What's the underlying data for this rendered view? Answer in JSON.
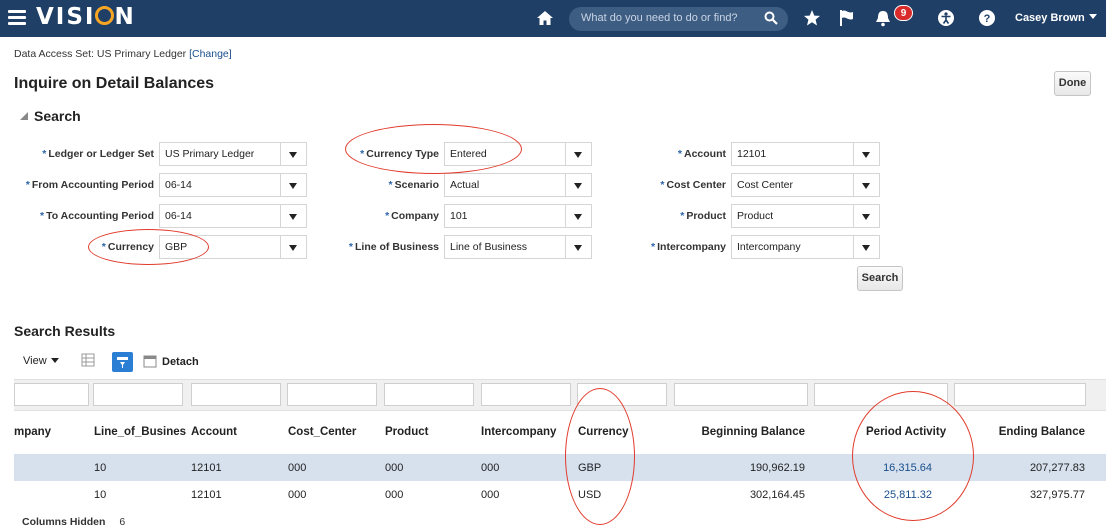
{
  "app": {
    "logo_text": "VISI",
    "logo_tail": "N",
    "search_placeholder": "What do you need to do or find?",
    "notification_count": "9",
    "user_name": "Casey Brown",
    "icons": [
      "menu-icon",
      "home-icon",
      "search-icon",
      "star-icon",
      "flag-icon",
      "bell-icon",
      "accessibility-icon",
      "help-icon"
    ]
  },
  "context": {
    "data_access_label": "Data Access Set: US Primary Ledger",
    "change_link": "[Change]"
  },
  "page": {
    "title": "Inquire on Detail Balances",
    "done_label": "Done",
    "search_section": "Search",
    "search_button": "Search"
  },
  "form": {
    "ledger_label": "Ledger or Ledger Set",
    "ledger_value": "US Primary Ledger",
    "from_period_label": "From Accounting Period",
    "from_period_value": "06-14",
    "to_period_label": "To Accounting Period",
    "to_period_value": "06-14",
    "currency_label": "Currency",
    "currency_value": "GBP",
    "currency_type_label": "Currency Type",
    "currency_type_value": "Entered",
    "scenario_label": "Scenario",
    "scenario_value": "Actual",
    "company_label": "Company",
    "company_value": "101",
    "lob_label": "Line of Business",
    "lob_value": "Line of Business",
    "account_label": "Account",
    "account_value": "12101",
    "cost_center_label": "Cost Center",
    "cost_center_value": "Cost Center",
    "product_label": "Product",
    "product_value": "Product",
    "intercompany_label": "Intercompany",
    "intercompany_value": "Intercompany",
    "required_mark": "*"
  },
  "results": {
    "title": "Search Results",
    "view_label": "View",
    "detach_label": "Detach",
    "columns": [
      "mpany",
      "Line_of_Business",
      "Account",
      "Cost_Center",
      "Product",
      "Intercompany",
      "Currency",
      "Beginning Balance",
      "Period Activity",
      "Ending Balance"
    ],
    "rows": [
      {
        "lob": "10",
        "account": "12101",
        "cost_center": "000",
        "product": "000",
        "intercompany": "000",
        "currency": "GBP",
        "beginning": "190,962.19",
        "activity": "16,315.64",
        "ending": "207,277.83"
      },
      {
        "lob": "10",
        "account": "12101",
        "cost_center": "000",
        "product": "000",
        "intercompany": "000",
        "currency": "USD",
        "beginning": "302,164.45",
        "activity": "25,811.32",
        "ending": "327,975.77"
      }
    ],
    "columns_hidden_label": "Columns Hidden",
    "columns_hidden_count": "6"
  },
  "colors": {
    "topbar": "#1f3f66",
    "selected_row": "#d7e1ee",
    "annotation": "#e03b2b",
    "link": "#1a4f8c"
  }
}
